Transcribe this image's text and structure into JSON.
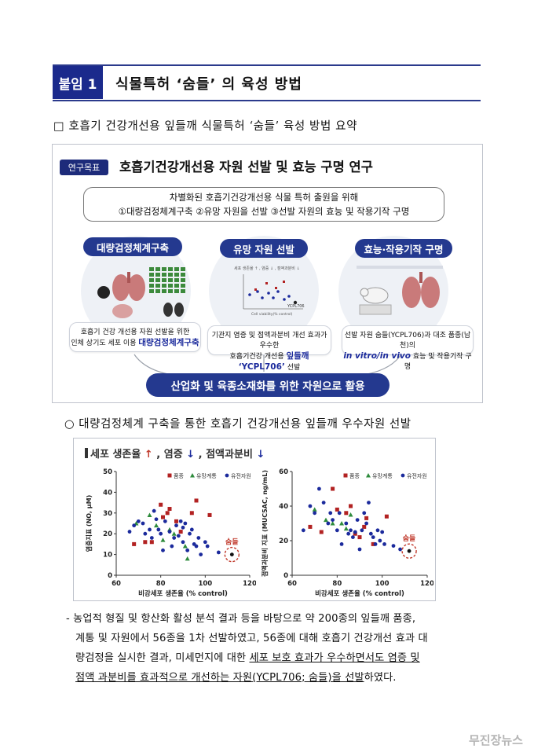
{
  "header": {
    "badge": "붙임 1",
    "title": "식물특허 ‘숨들’ 의 육성 방법"
  },
  "summary_line": "□ 호흡기 건강개선용 잎들깨 식물특허 ‘숨들’ 육성 방법 요약",
  "figure": {
    "goal_tag": "연구목표",
    "goal_title": "호흡기건강개선용 자원 선발 및 효능 구명 연구",
    "aim_line1": "차별화된 호흡기건강개선용 식물 특허 출원을 위해",
    "aim_line2": "①대량검정체계구축 ②유망 자원을 선발 ③선발 자원의 효능 및 작용기작 구명",
    "pills": [
      "대량검정체계구축",
      "유망 자원 선발",
      "효능·작용기작 구명"
    ],
    "captions": [
      {
        "line1": "호흡기 건강 개선용 자원 선발을 위한",
        "line2_pre": "인체 상기도 세포 이용 ",
        "line2_hl": "대량검정체계구축"
      },
      {
        "line1": "기관지 염증 및 점액과분비 개선 효과가 우수한",
        "line2_pre": "호흡기건강 개선용 ",
        "line2_hl": "잎들깨 ‘YCPL706’",
        "line2_post": " 선발"
      },
      {
        "line1": "선발 자원 숨들(YCPL706)과 대조 품종(남천)의",
        "line2_hl": "in vitro/in vivo",
        "line2_post": " 효능 및 작용기작 구명"
      }
    ],
    "mini_chart_label": "YCPL706",
    "mini_chart_title": "세포 생존율 ↑ , 염증 ↓ , 점액과분비 ↓",
    "mini_x_label": "Cell viability(% control)",
    "mini_y_label": "NO production(%)",
    "bottom_pill": "산업화 및 육종소재화를 위한 자원으로 활용"
  },
  "section_line": "○ 대량검정체계 구축을 통한 호흡기 건강개선용 잎들깨 우수자원 선발",
  "chart_header": {
    "prefix": "세포 생존율 ",
    "up": "↑",
    "mid": " , 염증 ",
    "dn1": "↓",
    "mid2": " , 점액과분비 ",
    "dn2": "↓"
  },
  "chart_data": [
    {
      "type": "scatter",
      "xlabel": "비강세포 생존율 (% control)",
      "ylabel": "염증지표 (NO, μM)",
      "xlim": [
        60,
        120
      ],
      "ylim": [
        0,
        50
      ],
      "xticks": [
        60,
        80,
        100,
        120
      ],
      "yticks": [
        0,
        10,
        20,
        30,
        40,
        50
      ],
      "legend": [
        "품종",
        "유망계통",
        "유전자원"
      ],
      "highlight": {
        "label": "숨들",
        "x": 112,
        "y": 10
      },
      "series": [
        {
          "name": "품종",
          "color": "#b22222",
          "marker": "square",
          "points": [
            [
              68,
              15
            ],
            [
              73,
              16
            ],
            [
              76,
              16
            ],
            [
              80,
              34
            ],
            [
              81,
              28
            ],
            [
              83,
              30
            ],
            [
              84,
              32
            ],
            [
              87,
              26
            ],
            [
              89,
              21
            ],
            [
              94,
              30
            ],
            [
              96,
              36
            ],
            [
              102,
              29
            ]
          ]
        },
        {
          "name": "유망계통",
          "color": "#2e8b3c",
          "marker": "triangle",
          "points": [
            [
              69,
              25
            ],
            [
              75,
              29
            ],
            [
              78,
              24
            ],
            [
              81,
              17
            ],
            [
              84,
              22
            ],
            [
              86,
              20
            ],
            [
              91,
              14
            ],
            [
              92,
              8
            ]
          ]
        },
        {
          "name": "유전자원",
          "color": "#1b2a9c",
          "marker": "circle",
          "points": [
            [
              66,
              21
            ],
            [
              68,
              24
            ],
            [
              70,
              26
            ],
            [
              72,
              25
            ],
            [
              73,
              20
            ],
            [
              75,
              22
            ],
            [
              76,
              18
            ],
            [
              77,
              31
            ],
            [
              78,
              27
            ],
            [
              79,
              22
            ],
            [
              80,
              20
            ],
            [
              81,
              12
            ],
            [
              82,
              26
            ],
            [
              84,
              21
            ],
            [
              85,
              14
            ],
            [
              86,
              18
            ],
            [
              87,
              24
            ],
            [
              88,
              19
            ],
            [
              89,
              26
            ],
            [
              90,
              23
            ],
            [
              90,
              16
            ],
            [
              91,
              25
            ],
            [
              92,
              12
            ],
            [
              93,
              20
            ],
            [
              94,
              22
            ],
            [
              95,
              15
            ],
            [
              96,
              14
            ],
            [
              97,
              18
            ],
            [
              98,
              10
            ],
            [
              100,
              16
            ],
            [
              101,
              14
            ],
            [
              106,
              11
            ]
          ]
        },
        {
          "name": "숨들",
          "color": "#111111",
          "marker": "circle",
          "points": [
            [
              112,
              10
            ]
          ]
        }
      ]
    },
    {
      "type": "scatter",
      "xlabel": "비강세포 생존율 (% control)",
      "ylabel": "점액과분비 지표 (MUC5AC, ng/mL)",
      "xlim": [
        60,
        120
      ],
      "ylim": [
        0,
        60
      ],
      "xticks": [
        60,
        80,
        100,
        120
      ],
      "yticks": [
        0,
        20,
        40,
        60
      ],
      "legend": [
        "품종",
        "유망계통",
        "유전자원"
      ],
      "highlight": {
        "label": "숨들",
        "x": 112,
        "y": 14
      },
      "series": [
        {
          "name": "품종",
          "color": "#b22222",
          "marker": "square",
          "points": [
            [
              68,
              28
            ],
            [
              73,
              25
            ],
            [
              78,
              50
            ],
            [
              80,
              38
            ],
            [
              84,
              36
            ],
            [
              86,
              40
            ],
            [
              88,
              24
            ],
            [
              90,
              22
            ],
            [
              92,
              28
            ],
            [
              93,
              33
            ],
            [
              96,
              18
            ],
            [
              102,
              34
            ]
          ]
        },
        {
          "name": "유망계통",
          "color": "#2e8b3c",
          "marker": "triangle",
          "points": [
            [
              70,
              38
            ],
            [
              75,
              32
            ],
            [
              78,
              30
            ],
            [
              82,
              30
            ],
            [
              84,
              27
            ],
            [
              86,
              35
            ]
          ]
        },
        {
          "name": "유전자원",
          "color": "#1b2a9c",
          "marker": "circle",
          "points": [
            [
              65,
              26
            ],
            [
              68,
              40
            ],
            [
              70,
              36
            ],
            [
              72,
              50
            ],
            [
              74,
              42
            ],
            [
              76,
              30
            ],
            [
              77,
              36
            ],
            [
              78,
              32
            ],
            [
              80,
              26
            ],
            [
              81,
              36
            ],
            [
              82,
              18
            ],
            [
              84,
              30
            ],
            [
              85,
              24
            ],
            [
              86,
              26
            ],
            [
              87,
              22
            ],
            [
              88,
              25
            ],
            [
              89,
              32
            ],
            [
              90,
              15
            ],
            [
              91,
              26
            ],
            [
              92,
              36
            ],
            [
              93,
              30
            ],
            [
              94,
              42
            ],
            [
              95,
              24
            ],
            [
              96,
              22
            ],
            [
              97,
              18
            ],
            [
              98,
              26
            ],
            [
              99,
              20
            ],
            [
              100,
              25
            ],
            [
              101,
              18
            ],
            [
              105,
              17
            ],
            [
              108,
              15
            ]
          ]
        },
        {
          "name": "숨들",
          "color": "#111111",
          "marker": "circle",
          "points": [
            [
              112,
              14
            ]
          ]
        }
      ]
    }
  ],
  "paragraph": {
    "line1": "- 농업적 형질 및 항산화 활성 분석 결과 등을 바탕으로 약 200종의 잎들깨 품종,",
    "line2": "계통 및 자원에서 56종을 1차 선발하였고, 56종에 대해 호흡기 건강개선 효과 대",
    "line3": "량검정을 실시한 결과, 미세먼지에 대한 ",
    "line3_ul": "세포 보호 효과가 우수하면서도 염증 및",
    "line4_ul": "점액 과분비를 효과적으로 개선하는 자원(YCPL706; 숨들)을 선발",
    "line4_post": "하였다."
  },
  "watermark": "무진장뉴스"
}
